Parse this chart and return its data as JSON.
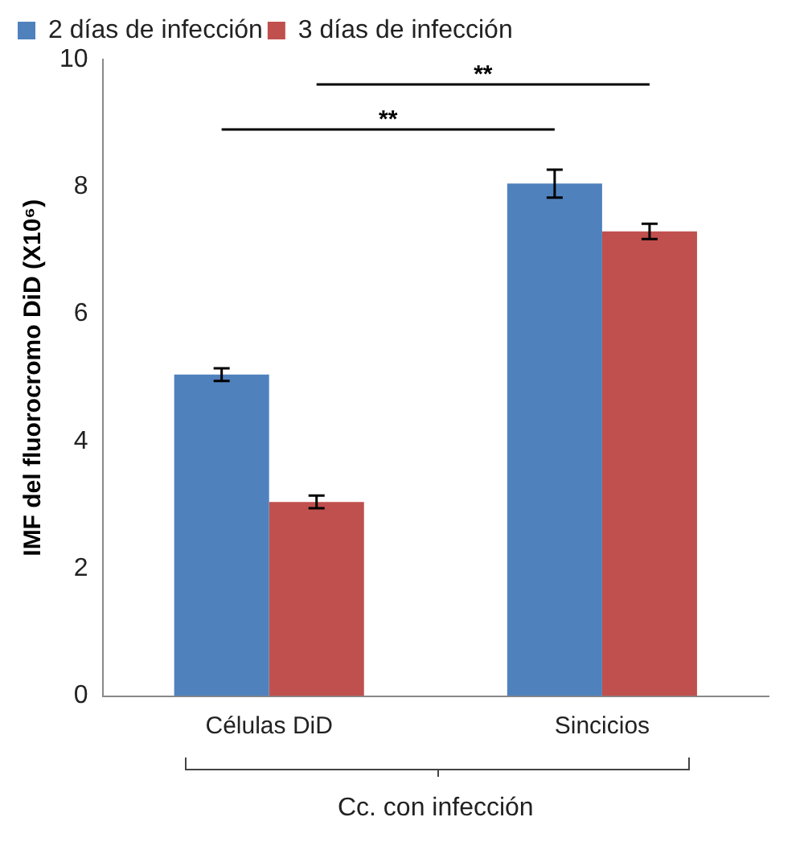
{
  "chart_data": {
    "type": "bar",
    "ylabel": "IMF del fluorocromo DiD (X10⁶)",
    "xlabel": "Cc. con infección",
    "categories": [
      "Células DiD",
      "Sincicios"
    ],
    "series": [
      {
        "name": "2 días de infección",
        "color": "#4f81bd",
        "values": [
          5.05,
          8.05
        ],
        "errors": [
          0.1,
          0.22
        ]
      },
      {
        "name": "3 días de infección",
        "color": "#c0504d",
        "values": [
          3.05,
          7.3
        ],
        "errors": [
          0.1,
          0.12
        ]
      }
    ],
    "ylim": [
      0,
      10
    ],
    "yticks": [
      0,
      2,
      4,
      6,
      8,
      10
    ],
    "grid": false,
    "legend": "top left",
    "annotations": [
      "**",
      "**"
    ]
  }
}
